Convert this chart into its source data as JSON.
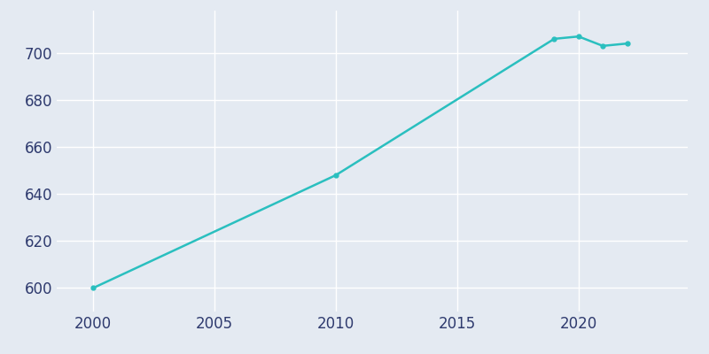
{
  "years": [
    2000,
    2010,
    2019,
    2020,
    2021,
    2022
  ],
  "population": [
    600,
    648,
    706,
    707,
    703,
    704
  ],
  "line_color": "#2abfbf",
  "marker": "o",
  "marker_size": 3.5,
  "background_color": "#e4eaf2",
  "grid_color": "#ffffff",
  "tick_color": "#2e3a6e",
  "xlim": [
    1998.5,
    2024.5
  ],
  "ylim": [
    590,
    718
  ],
  "xticks": [
    2000,
    2005,
    2010,
    2015,
    2020
  ],
  "yticks": [
    600,
    620,
    640,
    660,
    680,
    700
  ],
  "tick_fontsize": 12,
  "linewidth": 1.8
}
